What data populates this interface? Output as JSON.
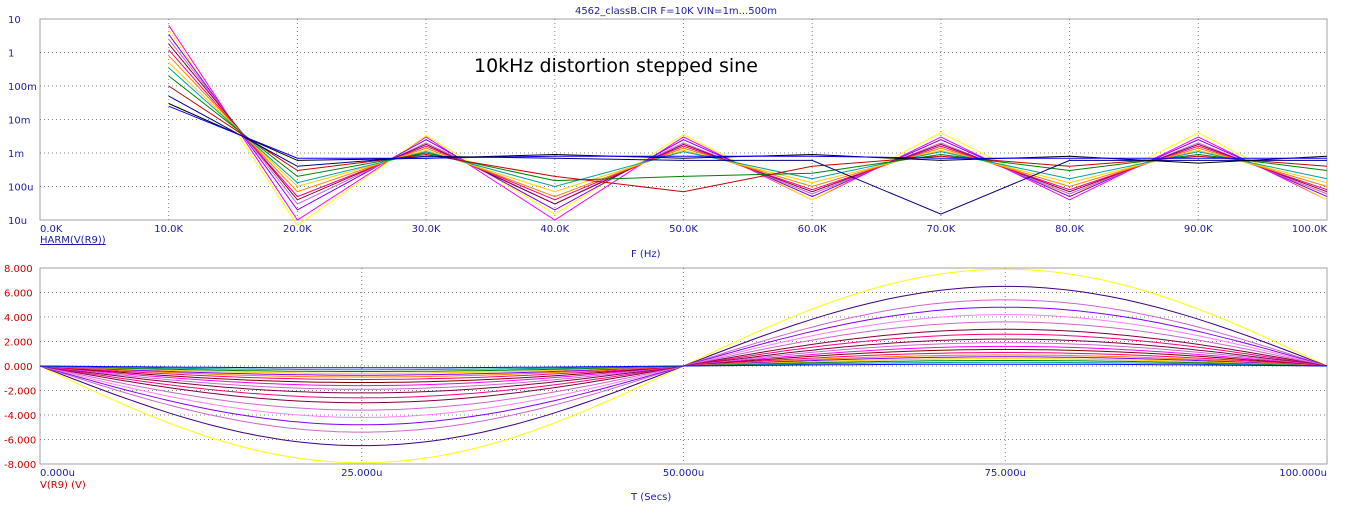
{
  "window": {
    "title": "4562_classB.CIR F=10K VIN=1m...500m"
  },
  "chart_data": [
    {
      "type": "line",
      "panel": "harmonics",
      "y_scale": "log",
      "ylim": [
        1e-05,
        10
      ],
      "xlim": [
        0,
        100000
      ],
      "x_ticks": [
        "0.0K",
        "10.0K",
        "20.0K",
        "30.0K",
        "40.0K",
        "50.0K",
        "60.0K",
        "70.0K",
        "80.0K",
        "90.0K",
        "100.0K"
      ],
      "y_ticks": [
        "10",
        "1",
        "100m",
        "10m",
        "1m",
        "100u",
        "10u"
      ],
      "xlabel": "F (Hz)",
      "ylabel": "HARM(V(R9))",
      "annotation": "10kHz distortion stepped sine",
      "grid": true,
      "x": [
        10000,
        20000,
        30000,
        40000,
        50000,
        60000,
        70000,
        80000,
        90000,
        100000
      ],
      "series": [
        {
          "color": "#ff00ff",
          "values": [
            6.5,
            1e-05,
            0.003,
            1e-05,
            0.003,
            4e-05,
            0.003,
            4e-05,
            0.003,
            4e-05
          ]
        },
        {
          "color": "#ffff00",
          "values": [
            5,
            7e-06,
            0.0033,
            1.5e-05,
            0.0035,
            4e-05,
            0.004,
            5e-05,
            0.004,
            4e-05
          ]
        },
        {
          "color": "#8000ff",
          "values": [
            3.5,
            2e-05,
            0.0025,
            2e-05,
            0.0025,
            5e-05,
            0.0025,
            5e-05,
            0.0025,
            5e-05
          ]
        },
        {
          "color": "#cc66cc",
          "values": [
            2.5,
            3e-05,
            0.002,
            3e-05,
            0.002,
            6e-05,
            0.002,
            6e-05,
            0.002,
            6e-05
          ]
        },
        {
          "color": "#800040",
          "values": [
            1.8,
            4e-05,
            0.0018,
            3e-05,
            0.0018,
            7e-05,
            0.0018,
            7e-05,
            0.0018,
            7e-05
          ]
        },
        {
          "color": "#ff0080",
          "values": [
            1.2,
            5e-05,
            0.0016,
            4e-05,
            0.0016,
            8e-05,
            0.0016,
            8e-05,
            0.0016,
            8e-05
          ]
        },
        {
          "color": "#ff8000",
          "values": [
            0.8,
            7e-05,
            0.0014,
            5e-05,
            0.0014,
            0.0001,
            0.0014,
            0.0001,
            0.0014,
            0.0001
          ]
        },
        {
          "color": "#ffcc00",
          "values": [
            0.5,
            0.0001,
            0.0012,
            7e-05,
            0.0012,
            0.00013,
            0.0012,
            0.00013,
            0.0012,
            0.00013
          ]
        },
        {
          "color": "#00a0a0",
          "values": [
            0.35,
            0.00013,
            0.0011,
            0.0001,
            0.0011,
            0.00017,
            0.0011,
            0.00017,
            0.0011,
            0.00017
          ]
        },
        {
          "color": "#008000",
          "values": [
            0.2,
            0.0002,
            0.001,
            0.00015,
            0.0002,
            0.00025,
            0.0009,
            0.0003,
            0.0009,
            0.0003
          ]
        },
        {
          "color": "#cc0000",
          "values": [
            0.1,
            0.0003,
            0.0009,
            0.0002,
            7e-05,
            0.0004,
            0.0008,
            0.0004,
            0.0008,
            0.0004
          ]
        },
        {
          "color": "#000080",
          "values": [
            0.05,
            0.0004,
            0.0008,
            0.0007,
            0.0006,
            0.0006,
            1.5e-05,
            0.0006,
            0.0006,
            0.0006
          ]
        },
        {
          "color": "#000000",
          "values": [
            0.03,
            0.0006,
            0.0007,
            0.0009,
            0.0007,
            0.0009,
            0.0006,
            0.0008,
            0.0005,
            0.0008
          ]
        },
        {
          "color": "#0000ff",
          "values": [
            0.025,
            0.0007,
            0.0007,
            0.0008,
            0.0008,
            0.0008,
            0.0007,
            0.0007,
            0.0007,
            0.0007
          ]
        }
      ]
    },
    {
      "type": "line",
      "panel": "time",
      "xlim": [
        0,
        0.0001
      ],
      "ylim": [
        -8,
        8
      ],
      "x_ticks": [
        "0.000u",
        "25.000u",
        "50.000u",
        "75.000u",
        "100.000u"
      ],
      "y_ticks": [
        "8.000",
        "6.000",
        "4.000",
        "2.000",
        "0.000",
        "-2.000",
        "-4.000",
        "-6.000",
        "-8.000"
      ],
      "xlabel": "T (Secs)",
      "ylabel": "V(R9) (V)",
      "grid": true,
      "series": [
        {
          "color": "#ffff00",
          "amplitude": 7.9
        },
        {
          "color": "#400080",
          "amplitude": 6.5
        },
        {
          "color": "#cc66cc",
          "amplitude": 5.4
        },
        {
          "color": "#8000ff",
          "amplitude": 4.8
        },
        {
          "color": "#ff80ff",
          "amplitude": 4.2
        },
        {
          "color": "#cc66cc",
          "amplitude": 3.6
        },
        {
          "color": "#800040",
          "amplitude": 3.0
        },
        {
          "color": "#ff0080",
          "amplitude": 2.6
        },
        {
          "color": "#800040",
          "amplitude": 2.2
        },
        {
          "color": "#cc66cc",
          "amplitude": 1.9
        },
        {
          "color": "#ff00ff",
          "amplitude": 1.6
        },
        {
          "color": "#800000",
          "amplitude": 1.35
        },
        {
          "color": "#ff0080",
          "amplitude": 1.1
        },
        {
          "color": "#ff8000",
          "amplitude": 0.9
        },
        {
          "color": "#8000ff",
          "amplitude": 0.75
        },
        {
          "color": "#ffcc00",
          "amplitude": 0.6
        },
        {
          "color": "#008000",
          "amplitude": 0.45
        },
        {
          "color": "#00a0a0",
          "amplitude": 0.3
        },
        {
          "color": "#0000ff",
          "amplitude": 0.15
        }
      ]
    }
  ]
}
